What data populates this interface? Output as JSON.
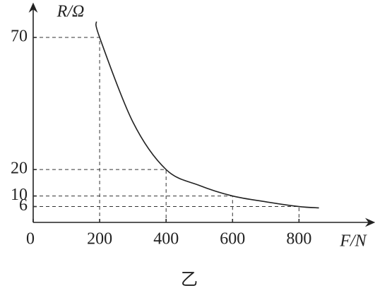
{
  "chart_data": {
    "type": "line",
    "caption": "乙",
    "y_label": "R/Ω",
    "x_label": "F/N",
    "x": [
      190,
      200,
      300,
      400,
      500,
      600,
      700,
      800,
      860
    ],
    "series": [
      {
        "color": "#222222",
        "values": [
          76,
          70,
          38,
          20,
          14,
          10,
          7.8,
          6,
          5.5
        ]
      }
    ],
    "xlim": [
      0,
      1016
    ],
    "ylim": [
      0,
      81.5
    ],
    "xticks": [
      0,
      200,
      400,
      600,
      800
    ],
    "yticks": [
      6,
      10,
      20,
      70
    ]
  }
}
